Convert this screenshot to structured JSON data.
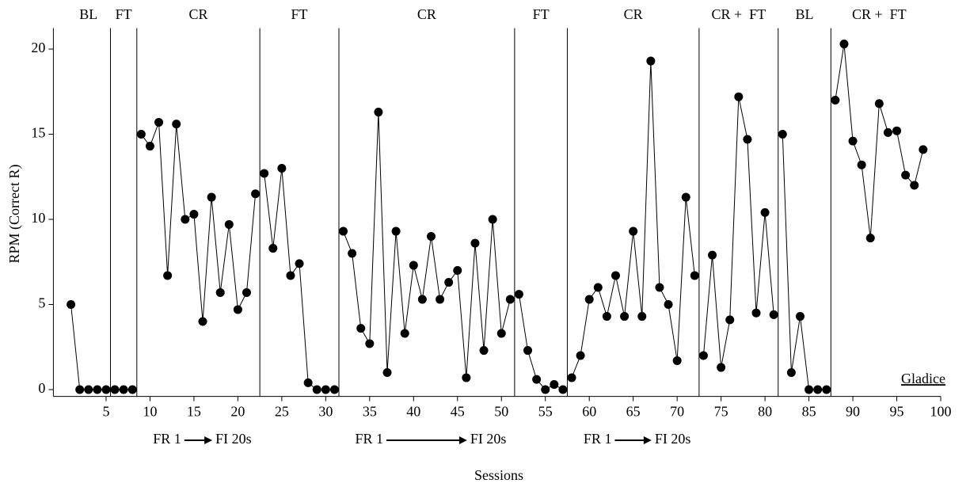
{
  "chart_data": {
    "type": "line",
    "y_label": "RPM (Correct R)",
    "x_label": "Sessions",
    "annotation": "Gladice",
    "x": [
      1,
      2,
      3,
      4,
      5,
      6,
      7,
      8,
      9,
      10,
      11,
      12,
      13,
      14,
      15,
      16,
      17,
      18,
      19,
      20,
      21,
      22,
      23,
      24,
      25,
      26,
      27,
      28,
      29,
      30,
      31,
      32,
      33,
      34,
      35,
      36,
      37,
      38,
      39,
      40,
      41,
      42,
      43,
      44,
      45,
      46,
      47,
      48,
      49,
      50,
      51,
      52,
      53,
      54,
      55,
      56,
      57,
      58,
      59,
      60,
      61,
      62,
      63,
      64,
      65,
      66,
      67,
      68,
      69,
      70,
      71,
      72,
      73,
      74,
      75,
      76,
      77,
      78,
      79,
      80,
      81,
      82,
      83,
      84,
      85,
      86,
      87,
      88,
      89,
      90,
      91,
      92,
      93,
      94,
      95,
      96,
      97,
      98
    ],
    "values": [
      5,
      0,
      0,
      0,
      0,
      0,
      0,
      0,
      15,
      14.3,
      15.7,
      6.7,
      15.6,
      10,
      10.3,
      4,
      11.3,
      5.7,
      9.7,
      4.7,
      5.7,
      11.5,
      12.7,
      8.3,
      13,
      6.7,
      7.4,
      0.4,
      0,
      0,
      0,
      9.3,
      8,
      3.6,
      2.7,
      16.3,
      1,
      9.3,
      3.3,
      7.3,
      5.3,
      9,
      5.3,
      6.3,
      7,
      0.7,
      8.6,
      2.3,
      10,
      3.3,
      5.3,
      5.6,
      2.3,
      0.6,
      0,
      0.3,
      0,
      0.7,
      2,
      5.3,
      6,
      4.3,
      6.7,
      4.3,
      9.3,
      4.3,
      19.3,
      6,
      5,
      1.7,
      11.3,
      6.7,
      2,
      7.9,
      1.3,
      4.1,
      17.2,
      14.7,
      4.5,
      10.4,
      4.4,
      15,
      1,
      4.3,
      0,
      0,
      0,
      17,
      20.3,
      14.6,
      13.2,
      8.9,
      16.8,
      15.1,
      15.2,
      12.6,
      12,
      14.1
    ],
    "color": "#000000",
    "phase_lines": [
      5.5,
      8.5,
      22.5,
      31.5,
      51.5,
      57.5,
      72.5,
      81.5,
      87.5
    ],
    "phases": [
      {
        "label": "BL"
      },
      {
        "label": "FT"
      },
      {
        "label": "CR",
        "note_from": "FR 1",
        "note_to": "FI 20s"
      },
      {
        "label": "FT"
      },
      {
        "label": "CR",
        "note_from": "FR 1",
        "note_to": "FI 20s"
      },
      {
        "label": "FT"
      },
      {
        "label": "CR",
        "note_from": "FR 1",
        "note_to": "FI 20s"
      },
      {
        "label": "CR +  FT"
      },
      {
        "label": "BL"
      },
      {
        "label": "CR +  FT"
      }
    ],
    "xlim": [
      -1,
      100
    ],
    "xticks": [
      5,
      10,
      15,
      20,
      25,
      30,
      35,
      40,
      45,
      50,
      55,
      60,
      65,
      70,
      75,
      80,
      85,
      90,
      95,
      100
    ],
    "ylim": [
      -0.4,
      21
    ],
    "yticks": [
      0,
      5,
      10,
      15,
      20
    ],
    "grid": false
  }
}
